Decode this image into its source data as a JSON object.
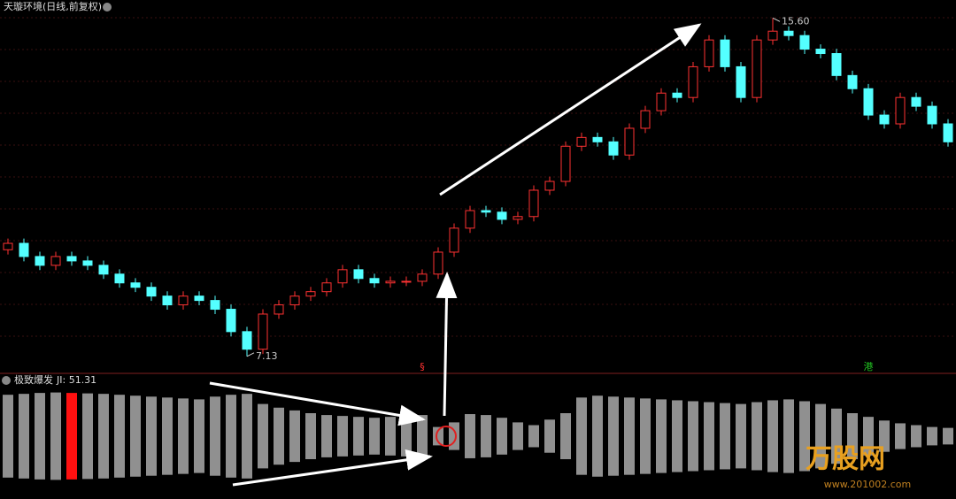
{
  "chart_data": [
    {
      "type": "candlestick",
      "title": "天璇环境(日线,前复权)",
      "up_color": "#ff3232",
      "down_color": "#54ffff",
      "ylim": [
        6.75,
        16.05
      ],
      "open": [
        9.8,
        9.96,
        9.63,
        9.41,
        9.63,
        9.52,
        9.41,
        9.19,
        8.97,
        8.86,
        8.64,
        8.42,
        8.64,
        8.53,
        8.31,
        7.75,
        7.31,
        8.19,
        8.42,
        8.64,
        8.75,
        8.97,
        9.3,
        9.08,
        8.97,
        9.01,
        9.01,
        9.19,
        9.74,
        10.34,
        10.78,
        10.74,
        10.56,
        10.63,
        11.29,
        11.51,
        12.39,
        12.61,
        12.5,
        12.17,
        12.84,
        13.28,
        13.72,
        13.61,
        14.38,
        15.05,
        14.38,
        13.61,
        15.05,
        15.27,
        15.16,
        14.82,
        14.71,
        14.16,
        13.83,
        13.17,
        12.95,
        13.61,
        13.39,
        12.95
      ],
      "high": [
        10.08,
        10.08,
        9.75,
        9.75,
        9.75,
        9.64,
        9.53,
        9.31,
        9.09,
        8.98,
        8.76,
        8.76,
        8.76,
        8.65,
        8.43,
        7.87,
        8.31,
        8.54,
        8.76,
        8.87,
        9.09,
        9.42,
        9.42,
        9.2,
        9.13,
        9.13,
        9.31,
        9.86,
        10.46,
        10.9,
        10.9,
        10.86,
        10.75,
        11.41,
        11.63,
        12.51,
        12.73,
        12.73,
        12.62,
        12.96,
        13.4,
        13.84,
        13.84,
        14.5,
        15.17,
        15.17,
        14.5,
        15.17,
        15.6,
        15.39,
        15.28,
        14.94,
        14.83,
        14.28,
        13.95,
        13.29,
        13.73,
        13.73,
        13.51,
        13.07
      ],
      "low": [
        9.68,
        9.51,
        9.29,
        9.29,
        9.4,
        9.29,
        9.07,
        8.85,
        8.74,
        8.52,
        8.3,
        8.3,
        8.41,
        8.19,
        7.63,
        7.13,
        7.19,
        8.07,
        8.3,
        8.52,
        8.63,
        8.85,
        8.96,
        8.85,
        8.85,
        8.89,
        8.89,
        9.07,
        9.62,
        10.22,
        10.62,
        10.44,
        10.44,
        10.51,
        11.17,
        11.39,
        12.27,
        12.38,
        12.05,
        12.05,
        12.72,
        13.16,
        13.49,
        13.49,
        14.26,
        14.26,
        13.49,
        13.49,
        14.93,
        15.04,
        14.7,
        14.59,
        14.04,
        13.71,
        13.05,
        12.83,
        12.83,
        13.27,
        12.83,
        12.38
      ],
      "close": [
        9.96,
        9.63,
        9.41,
        9.63,
        9.52,
        9.41,
        9.19,
        8.97,
        8.86,
        8.64,
        8.42,
        8.64,
        8.53,
        8.31,
        7.75,
        7.31,
        8.19,
        8.42,
        8.64,
        8.75,
        8.97,
        9.3,
        9.08,
        8.97,
        9.01,
        9.01,
        9.19,
        9.74,
        10.34,
        10.78,
        10.74,
        10.56,
        10.63,
        11.29,
        11.51,
        12.39,
        12.61,
        12.5,
        12.17,
        12.84,
        13.28,
        13.72,
        13.61,
        14.38,
        15.05,
        14.38,
        13.61,
        15.05,
        15.27,
        15.16,
        14.82,
        14.71,
        14.16,
        13.83,
        13.17,
        12.95,
        13.61,
        13.39,
        12.95,
        12.5
      ],
      "annotations": [
        {
          "index": 48,
          "value": 15.6,
          "label": "15.60"
        },
        {
          "index": 15,
          "value": 7.13,
          "label": "7.13"
        }
      ],
      "markers": [
        {
          "index": 26,
          "label": "§",
          "color": "#ff3232"
        },
        {
          "index": 54,
          "label": "港",
          "color": "#20c020"
        }
      ]
    },
    {
      "type": "bar",
      "title": "极致爆发",
      "indicator_label": "JI: 51.31",
      "color": "#909090",
      "highlight_index": 4,
      "highlight_color": "#ff1010",
      "ylim": [
        0,
        100
      ],
      "values": [
        90,
        92,
        94,
        95,
        94,
        93,
        92,
        90,
        88,
        86,
        84,
        82,
        80,
        86,
        90,
        92,
        70,
        62,
        56,
        50,
        46,
        44,
        42,
        40,
        42,
        44,
        46,
        20,
        30,
        48,
        46,
        40,
        30,
        24,
        36,
        50,
        84,
        88,
        86,
        84,
        82,
        80,
        78,
        76,
        74,
        72,
        70,
        74,
        78,
        80,
        76,
        70,
        60,
        50,
        42,
        34,
        28,
        24,
        20,
        18
      ]
    }
  ],
  "watermark": {
    "title": "万股网",
    "url": "www.201002.com"
  }
}
